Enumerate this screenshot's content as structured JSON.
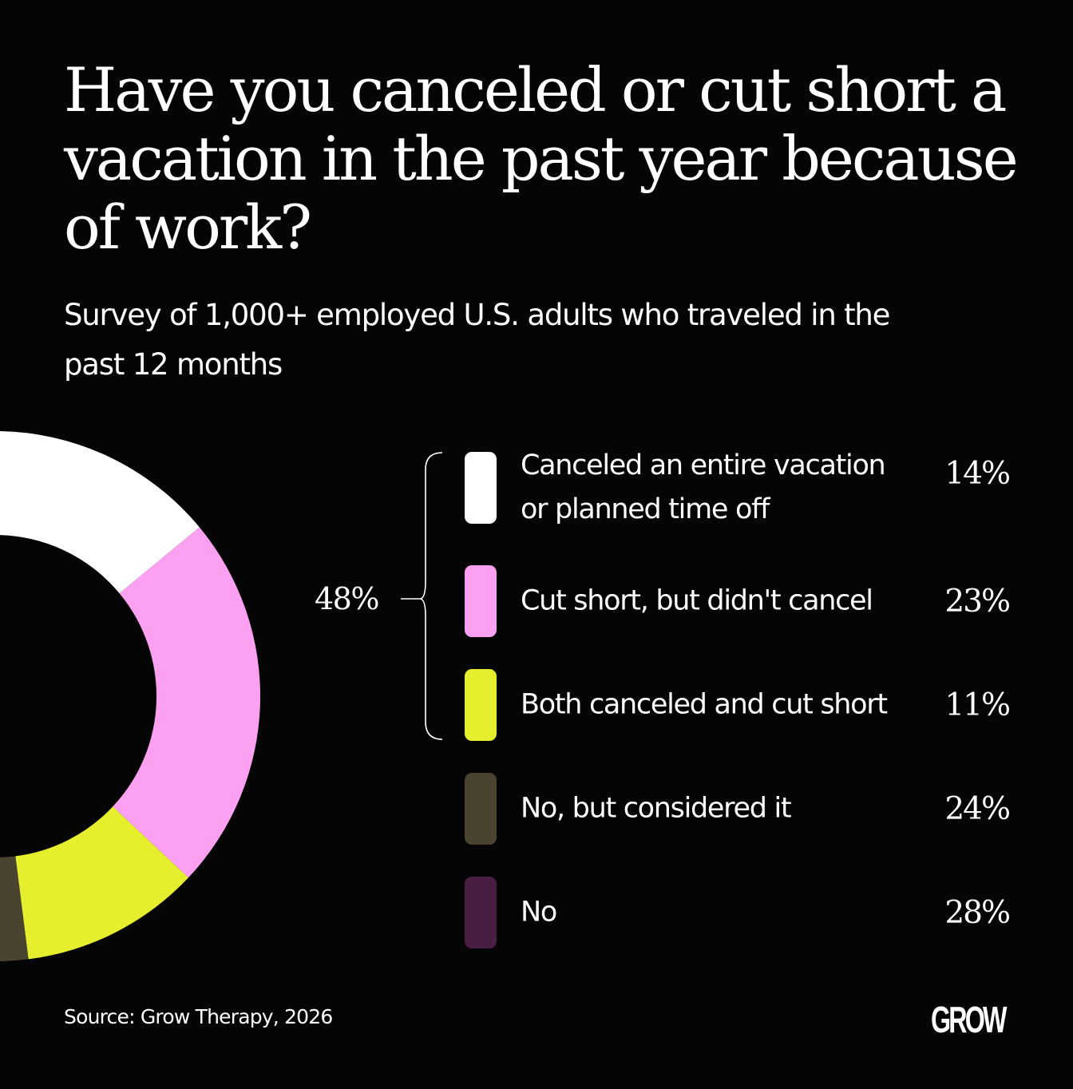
{
  "title": "Have you canceled or cut short a vacation in the past year because of work?",
  "subtitle": "Survey of 1,000+ employed U.S. adults who traveled in the past 12 months",
  "bracket_total": "48%",
  "source": "Source: Grow Therapy,  2026",
  "logo": "GROW",
  "chart_data": {
    "type": "pie",
    "title": "Have you canceled or cut short a vacation in the past year because of work?",
    "slices": [
      {
        "label": "Canceled an entire vacation or planned time off",
        "value": 14,
        "value_label": "14%",
        "color": "#ffffff"
      },
      {
        "label": "Cut short, but didn't cancel",
        "value": 23,
        "value_label": "23%",
        "color": "#fca0f2"
      },
      {
        "label": "Both canceled and cut short",
        "value": 11,
        "value_label": "11%",
        "color": "#e6ef2e"
      },
      {
        "label": "No, but considered it",
        "value": 24,
        "value_label": "24%",
        "color": "#4a4330"
      },
      {
        "label": "No",
        "value": 28,
        "value_label": "28%",
        "color": "#491e43"
      }
    ],
    "group": {
      "label": "48%",
      "slices": [
        0,
        1,
        2
      ]
    },
    "donut": true,
    "legend_position": "right"
  }
}
